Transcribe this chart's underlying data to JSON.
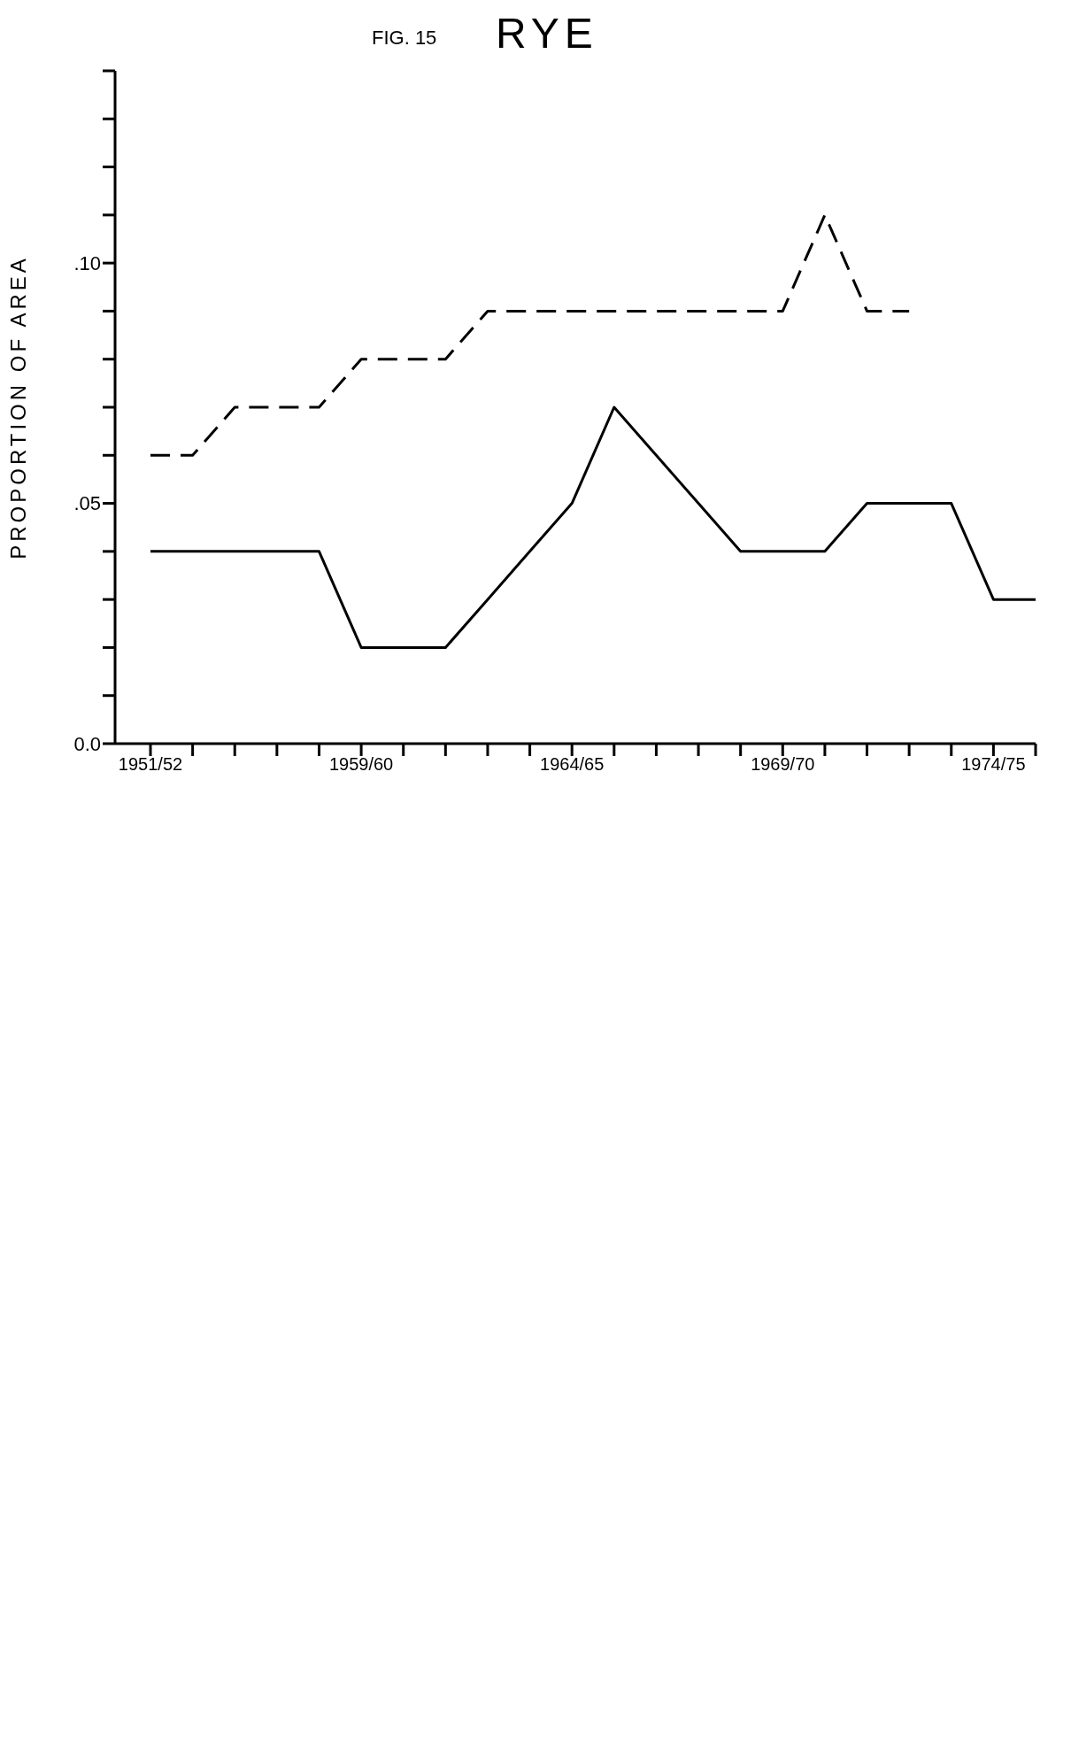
{
  "chart_data": {
    "type": "line",
    "title": "RYE",
    "subtitle": "FIG. 15",
    "ylabel": "PROPORTION OF AREA",
    "categories": [
      "1951/52",
      null,
      null,
      null,
      null,
      "1959/60",
      null,
      null,
      null,
      null,
      "1964/65",
      null,
      null,
      null,
      null,
      "1969/70",
      null,
      null,
      null,
      null,
      "1974/75",
      null
    ],
    "series": [
      {
        "color": "#000000",
        "line_style": "solid",
        "values": [
          0.04,
          0.04,
          0.04,
          0.04,
          0.04,
          0.02,
          0.02,
          0.02,
          0.03,
          0.04,
          0.05,
          0.07,
          0.06,
          0.05,
          0.04,
          0.04,
          0.04,
          0.05,
          0.05,
          0.05,
          0.03,
          0.03
        ]
      },
      {
        "color": "#000000",
        "line_style": "dashed",
        "values": [
          0.06,
          0.06,
          0.07,
          0.07,
          0.07,
          0.08,
          0.08,
          0.08,
          0.09,
          0.09,
          0.09,
          0.09,
          0.09,
          0.09,
          0.09,
          0.09,
          0.11,
          0.09,
          0.09,
          null,
          null,
          null
        ]
      }
    ],
    "ylim": [
      0,
      0.14
    ],
    "yticks": [
      {
        "value": 0,
        "label": "0.0"
      },
      {
        "value": 0.01,
        "label": null
      },
      {
        "value": 0.02,
        "label": null
      },
      {
        "value": 0.03,
        "label": null
      },
      {
        "value": 0.04,
        "label": null
      },
      {
        "value": 0.05,
        "label": ".05"
      },
      {
        "value": 0.06,
        "label": null
      },
      {
        "value": 0.07,
        "label": null
      },
      {
        "value": 0.08,
        "label": null
      },
      {
        "value": 0.09,
        "label": null
      },
      {
        "value": 0.1,
        "label": ".10"
      },
      {
        "value": 0.11,
        "label": null
      },
      {
        "value": 0.12,
        "label": null
      },
      {
        "value": 0.13,
        "label": null
      },
      {
        "value": 0.14,
        "label": null
      }
    ],
    "grid": false,
    "legend": false,
    "marker": "none"
  }
}
